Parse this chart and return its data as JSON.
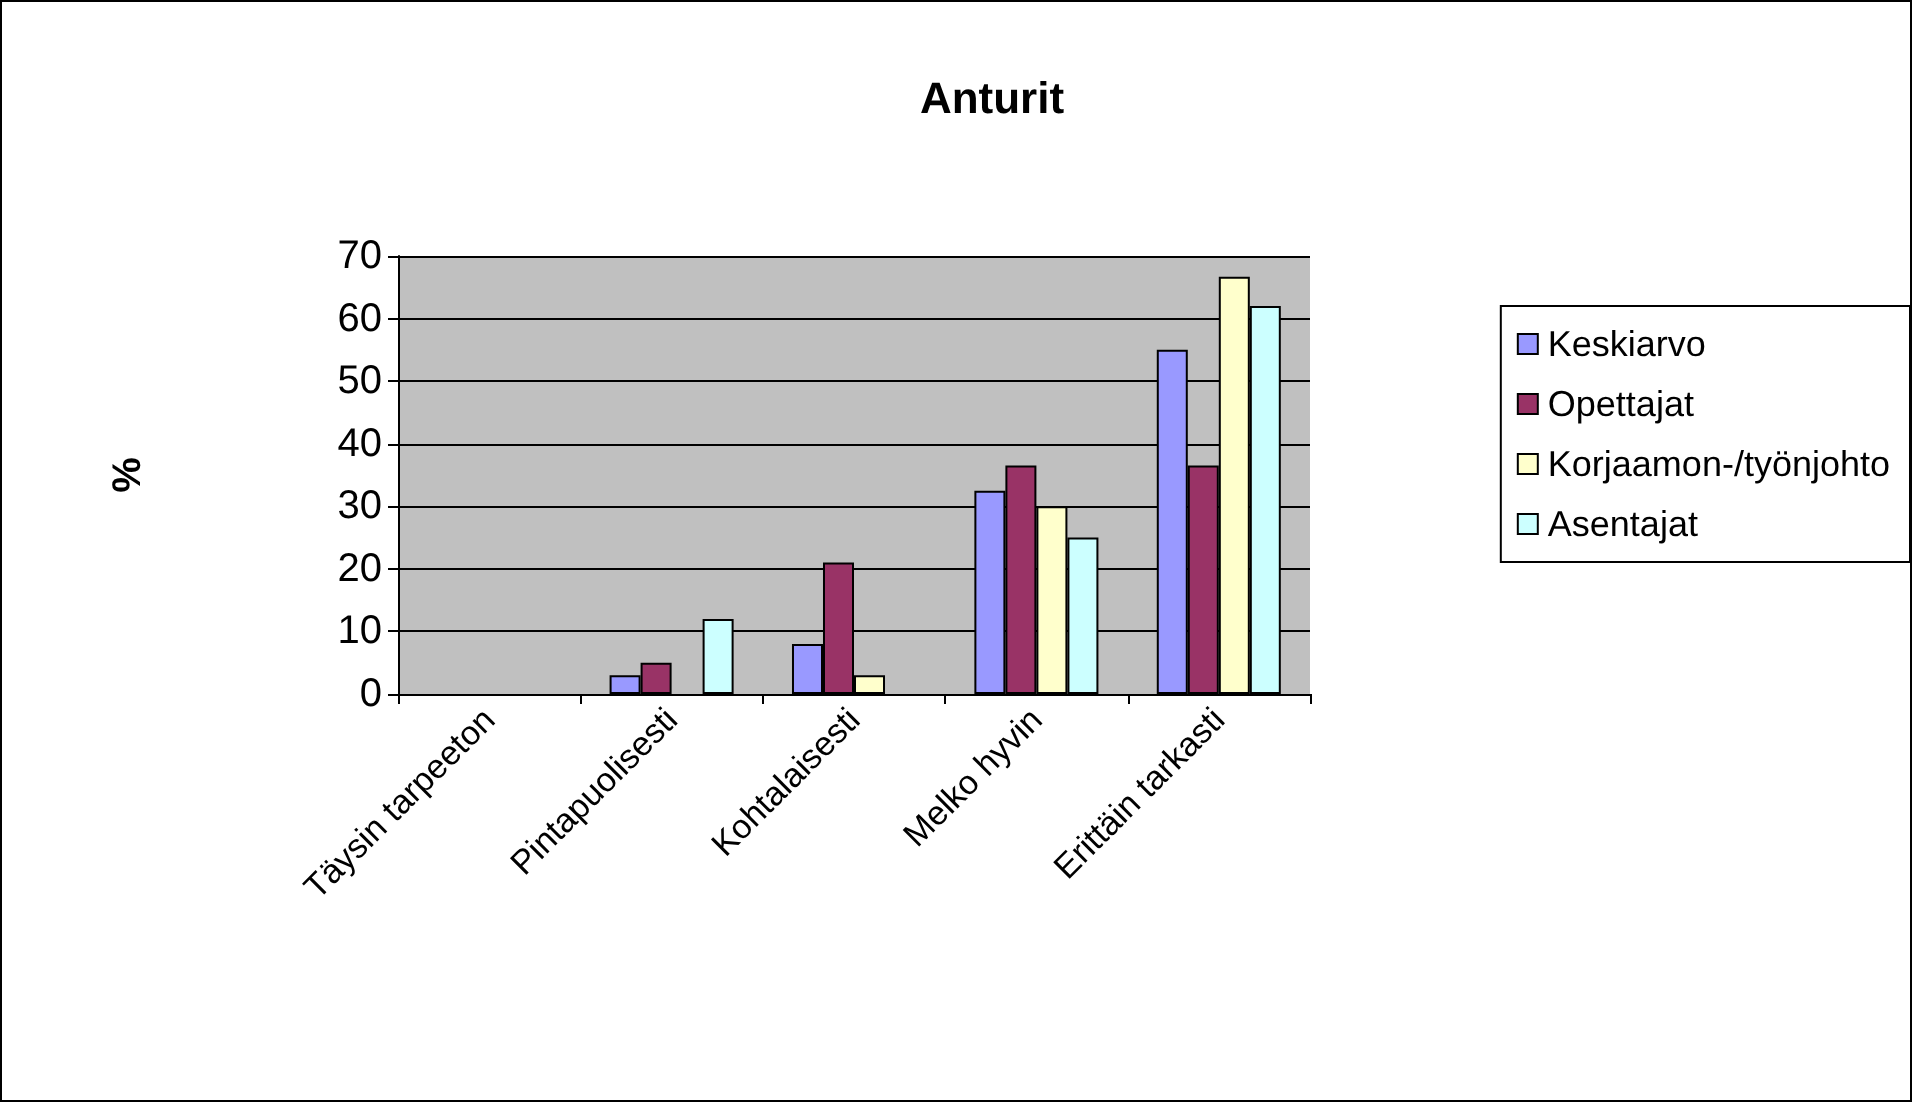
{
  "chart_data": {
    "type": "bar",
    "title": "Anturit",
    "ylabel": "%",
    "categories": [
      "Täysin tarpeeton",
      "Pintapuolisesti",
      "Kohtalaisesti",
      "Melko hyvin",
      "Erittäin tarkasti"
    ],
    "series": [
      {
        "name": "Keskiarvo",
        "color": "#9999ff",
        "values": [
          0,
          3,
          8,
          32.5,
          55
        ]
      },
      {
        "name": "Opettajat",
        "color": "#993366",
        "values": [
          0,
          5,
          21,
          36.5,
          36.5
        ]
      },
      {
        "name": "Korjaamon-/työnjohto",
        "color": "#ffffcc",
        "values": [
          0,
          0,
          3,
          30,
          66.7
        ]
      },
      {
        "name": "Asentajat",
        "color": "#ccffff",
        "values": [
          0,
          12,
          0,
          25,
          62
        ]
      }
    ],
    "ylim": [
      0,
      70
    ],
    "yticks": [
      0,
      10,
      20,
      30,
      40,
      50,
      60,
      70
    ],
    "grid": "y",
    "legend": "right"
  }
}
